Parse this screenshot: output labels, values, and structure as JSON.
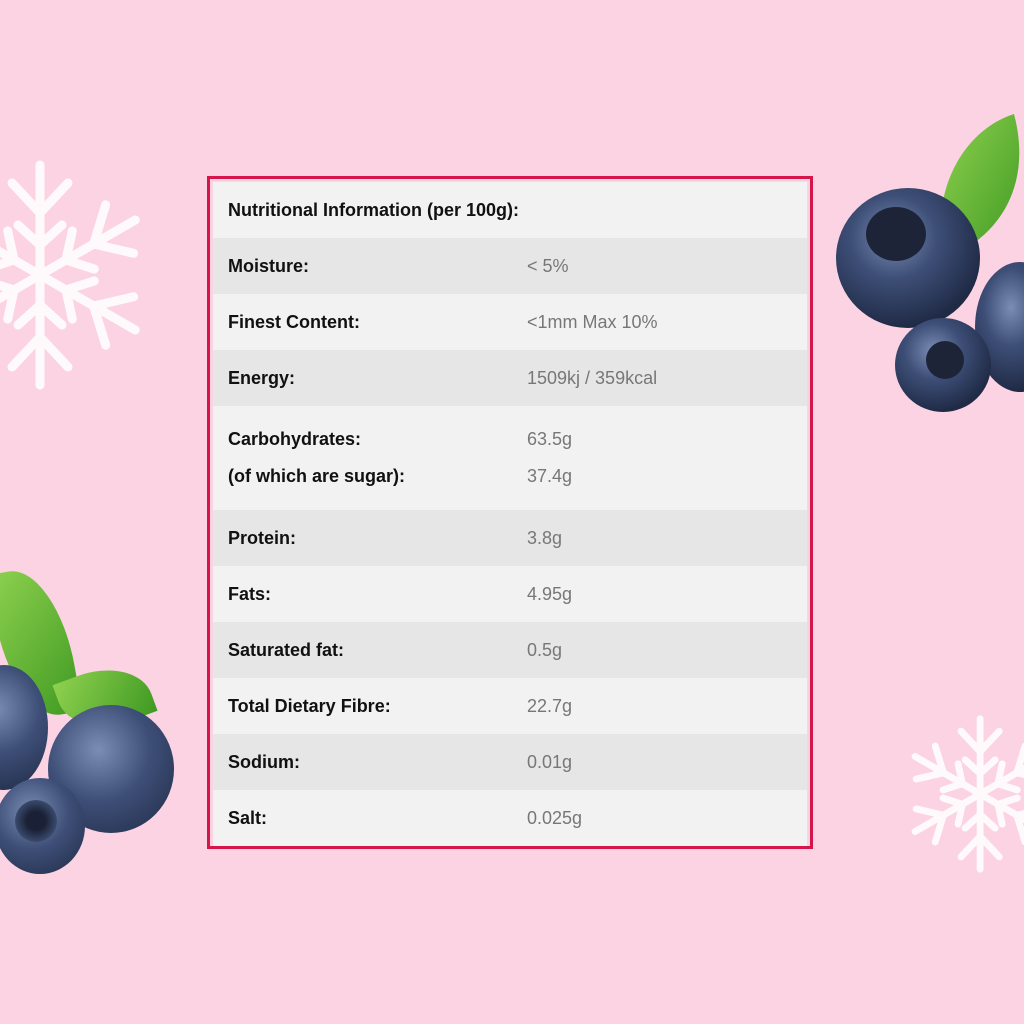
{
  "table": {
    "title": "Nutritional Information (per 100g):",
    "rows": [
      {
        "label": "Moisture:",
        "value": "< 5%"
      },
      {
        "label": "Finest Content:",
        "value": "<1mm Max 10%"
      },
      {
        "label": "Energy:",
        "value": "1509kj / 359kcal"
      },
      {
        "label": "Carbohydrates:",
        "value": "63.5g",
        "sub_label": "(of which are sugar):",
        "sub_value": "37.4g"
      },
      {
        "label": "Protein:",
        "value": "3.8g"
      },
      {
        "label": "Fats:",
        "value": "4.95g"
      },
      {
        "label": "Saturated fat:",
        "value": "0.5g"
      },
      {
        "label": "Total Dietary Fibre:",
        "value": "22.7g"
      },
      {
        "label": "Sodium:",
        "value": "0.01g"
      },
      {
        "label": "Salt:",
        "value": "0.025g"
      }
    ]
  },
  "colors": {
    "background": "#fbd3e3",
    "border": "#d6164a",
    "row_light": "#f2f2f2",
    "row_dark": "#e6e6e6"
  },
  "decorations": [
    "snowflake-icon",
    "blueberry-cluster"
  ]
}
